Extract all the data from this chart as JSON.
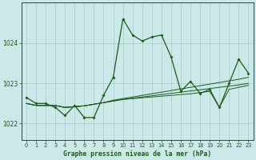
{
  "title": "Graphe pression niveau de la mer (hPa)",
  "bg_color": "#cce8e8",
  "grid_color": "#aacccc",
  "line_color": "#1a5c1a",
  "xlim": [
    -0.5,
    23.5
  ],
  "ylim": [
    1021.6,
    1025.0
  ],
  "yticks": [
    1022,
    1023,
    1024
  ],
  "xticks": [
    0,
    1,
    2,
    3,
    4,
    5,
    6,
    7,
    8,
    9,
    10,
    11,
    12,
    13,
    14,
    15,
    16,
    17,
    18,
    19,
    20,
    21,
    22,
    23
  ],
  "series_main": [
    1022.65,
    1022.5,
    1022.5,
    1022.4,
    1022.2,
    1022.45,
    1022.15,
    1022.15,
    1022.7,
    1023.15,
    1024.6,
    1024.2,
    1024.05,
    1024.15,
    1024.2,
    1023.65,
    1022.8,
    1023.05,
    1022.75,
    1022.85,
    1022.4,
    1023.0,
    1023.6,
    1023.25
  ],
  "series_flat1": [
    1022.5,
    1022.45,
    1022.45,
    1022.45,
    1022.4,
    1022.42,
    1022.44,
    1022.48,
    1022.52,
    1022.58,
    1022.62,
    1022.66,
    1022.7,
    1022.74,
    1022.78,
    1022.82,
    1022.86,
    1022.9,
    1022.94,
    1022.98,
    1023.02,
    1023.06,
    1023.1,
    1023.15
  ],
  "series_flat2": [
    1022.5,
    1022.45,
    1022.45,
    1022.45,
    1022.4,
    1022.42,
    1022.44,
    1022.48,
    1022.52,
    1022.56,
    1022.6,
    1022.63,
    1022.66,
    1022.69,
    1022.72,
    1022.75,
    1022.78,
    1022.81,
    1022.84,
    1022.87,
    1022.9,
    1022.93,
    1022.96,
    1023.0
  ],
  "series_flat3": [
    1022.5,
    1022.45,
    1022.45,
    1022.45,
    1022.4,
    1022.42,
    1022.44,
    1022.48,
    1022.52,
    1022.56,
    1022.6,
    1022.62,
    1022.64,
    1022.66,
    1022.68,
    1022.7,
    1022.72,
    1022.74,
    1022.77,
    1022.8,
    1022.4,
    1022.85,
    1022.9,
    1022.95
  ]
}
